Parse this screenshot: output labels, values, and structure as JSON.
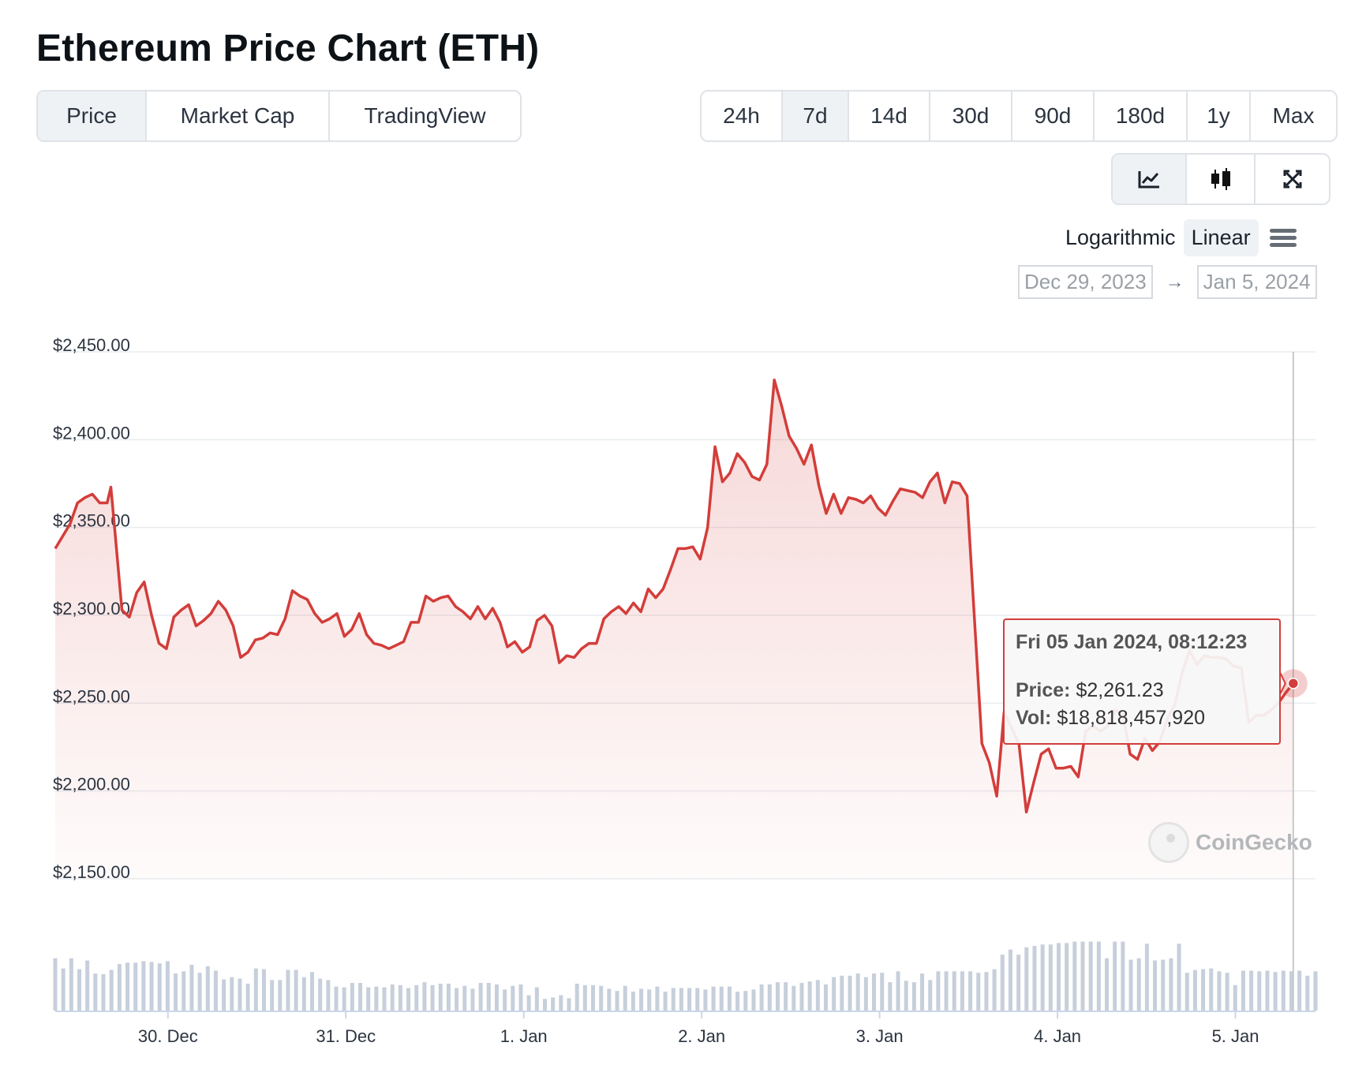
{
  "page": {
    "title": "Ethereum Price Chart (ETH)"
  },
  "view_tabs": [
    {
      "label": "Price",
      "active": true
    },
    {
      "label": "Market Cap",
      "active": false
    },
    {
      "label": "TradingView",
      "active": false
    }
  ],
  "range_tabs": [
    {
      "label": "24h",
      "active": false
    },
    {
      "label": "7d",
      "active": true
    },
    {
      "label": "14d",
      "active": false
    },
    {
      "label": "30d",
      "active": false
    },
    {
      "label": "90d",
      "active": false
    },
    {
      "label": "180d",
      "active": false
    },
    {
      "label": "1y",
      "active": false
    },
    {
      "label": "Max",
      "active": false
    }
  ],
  "chart_type_tabs": [
    {
      "icon": "line-chart-icon",
      "active": true
    },
    {
      "icon": "candlestick-icon",
      "active": false
    },
    {
      "icon": "fullscreen-icon",
      "active": false
    }
  ],
  "scale": {
    "log_label": "Logarithmic",
    "linear_label": "Linear",
    "active": "Linear"
  },
  "date_range": {
    "from": "Dec 29, 2023",
    "arrow": "→",
    "to": "Jan 5, 2024"
  },
  "tooltip": {
    "date": "Fri 05 Jan 2024, 08:12:23",
    "price_label": "Price:",
    "price_value": "$2,261.23",
    "vol_label": "Vol:",
    "vol_value": "$18,818,457,920"
  },
  "watermark": "CoinGecko",
  "colors": {
    "line": "#d33d3a",
    "volume": "#c6cfdb",
    "grid": "#e9ecef"
  },
  "chart_data": {
    "type": "line",
    "ylim": [
      2150,
      2450
    ],
    "yticks": [
      {
        "value": 2450,
        "label": "$2,450.00"
      },
      {
        "value": 2400,
        "label": "$2,400.00"
      },
      {
        "value": 2350,
        "label": "$2,350.00"
      },
      {
        "value": 2300,
        "label": "$2,300.00"
      },
      {
        "value": 2250,
        "label": "$2,250.00"
      },
      {
        "value": 2200,
        "label": "$2,200.00"
      },
      {
        "value": 2150,
        "label": "$2,150.00"
      }
    ],
    "xlim": [
      0,
      170
    ],
    "xticks": [
      {
        "value": 15.2,
        "label": "30. Dec"
      },
      {
        "value": 39.2,
        "label": "31. Dec"
      },
      {
        "value": 63.2,
        "label": "1. Jan"
      },
      {
        "value": 87.2,
        "label": "2. Jan"
      },
      {
        "value": 111.2,
        "label": "3. Jan"
      },
      {
        "value": 135.2,
        "label": "4. Jan"
      },
      {
        "value": 159.2,
        "label": "5. Jan"
      }
    ],
    "price": [
      [
        0,
        2338
      ],
      [
        2,
        2352
      ],
      [
        3,
        2364
      ],
      [
        4,
        2367
      ],
      [
        5,
        2369
      ],
      [
        6,
        2364
      ],
      [
        7,
        2364
      ],
      [
        7.5,
        2373
      ],
      [
        8,
        2350
      ],
      [
        9,
        2303
      ],
      [
        10,
        2299
      ],
      [
        11,
        2313
      ],
      [
        12,
        2319
      ],
      [
        13,
        2300
      ],
      [
        14,
        2284
      ],
      [
        15,
        2281
      ],
      [
        16,
        2299
      ],
      [
        17,
        2303
      ],
      [
        18,
        2306
      ],
      [
        19,
        2294
      ],
      [
        20,
        2297
      ],
      [
        21,
        2301
      ],
      [
        22,
        2308
      ],
      [
        23,
        2303
      ],
      [
        24,
        2294
      ],
      [
        25,
        2276
      ],
      [
        26,
        2279
      ],
      [
        27,
        2286
      ],
      [
        28,
        2287
      ],
      [
        29,
        2290
      ],
      [
        30,
        2289
      ],
      [
        31,
        2298
      ],
      [
        32,
        2314
      ],
      [
        33,
        2311
      ],
      [
        34,
        2309
      ],
      [
        35,
        2301
      ],
      [
        36,
        2296
      ],
      [
        37,
        2298
      ],
      [
        38,
        2301
      ],
      [
        39,
        2288
      ],
      [
        40,
        2292
      ],
      [
        41,
        2301
      ],
      [
        42,
        2289
      ],
      [
        43,
        2284
      ],
      [
        44,
        2283
      ],
      [
        45,
        2281
      ],
      [
        46,
        2283
      ],
      [
        47,
        2285
      ],
      [
        48,
        2296
      ],
      [
        49,
        2296
      ],
      [
        50,
        2311
      ],
      [
        51,
        2308
      ],
      [
        52,
        2310
      ],
      [
        53,
        2311
      ],
      [
        54,
        2305
      ],
      [
        55,
        2302
      ],
      [
        56,
        2298
      ],
      [
        57,
        2305
      ],
      [
        58,
        2298
      ],
      [
        59,
        2304
      ],
      [
        60,
        2296
      ],
      [
        61,
        2282
      ],
      [
        62,
        2285
      ],
      [
        63,
        2279
      ],
      [
        64,
        2282
      ],
      [
        65,
        2297
      ],
      [
        66,
        2300
      ],
      [
        67,
        2294
      ],
      [
        68,
        2273
      ],
      [
        69,
        2277
      ],
      [
        70,
        2276
      ],
      [
        71,
        2281
      ],
      [
        72,
        2284
      ],
      [
        73,
        2284
      ],
      [
        74,
        2298
      ],
      [
        75,
        2302
      ],
      [
        76,
        2305
      ],
      [
        77,
        2301
      ],
      [
        78,
        2307
      ],
      [
        79,
        2302
      ],
      [
        80,
        2315
      ],
      [
        81,
        2310
      ],
      [
        82,
        2315
      ],
      [
        83,
        2326
      ],
      [
        84,
        2338
      ],
      [
        85,
        2338
      ],
      [
        86,
        2339
      ],
      [
        87,
        2332
      ],
      [
        88,
        2350
      ],
      [
        89,
        2396
      ],
      [
        90,
        2376
      ],
      [
        91,
        2381
      ],
      [
        92,
        2392
      ],
      [
        93,
        2387
      ],
      [
        94,
        2379
      ],
      [
        95,
        2377
      ],
      [
        96,
        2386
      ],
      [
        97,
        2434
      ],
      [
        98,
        2419
      ],
      [
        99,
        2402
      ],
      [
        100,
        2395
      ],
      [
        101,
        2386
      ],
      [
        102,
        2397
      ],
      [
        103,
        2374
      ],
      [
        104,
        2358
      ],
      [
        105,
        2369
      ],
      [
        106,
        2358
      ],
      [
        107,
        2367
      ],
      [
        108,
        2366
      ],
      [
        109,
        2364
      ],
      [
        110,
        2368
      ],
      [
        111,
        2361
      ],
      [
        112,
        2357
      ],
      [
        113,
        2365
      ],
      [
        114,
        2372
      ],
      [
        115,
        2371
      ],
      [
        116,
        2370
      ],
      [
        117,
        2367
      ],
      [
        118,
        2376
      ],
      [
        119,
        2381
      ],
      [
        120,
        2364
      ],
      [
        121,
        2376
      ],
      [
        122,
        2375
      ],
      [
        123,
        2368
      ],
      [
        125,
        2227
      ],
      [
        126,
        2216
      ],
      [
        127,
        2197
      ],
      [
        128,
        2245
      ],
      [
        129,
        2236
      ],
      [
        130,
        2227
      ],
      [
        131,
        2188
      ],
      [
        132,
        2205
      ],
      [
        133,
        2221
      ],
      [
        134,
        2224
      ],
      [
        135,
        2213
      ],
      [
        136,
        2213
      ],
      [
        137,
        2214
      ],
      [
        138,
        2208
      ],
      [
        139,
        2234
      ],
      [
        140,
        2237
      ],
      [
        141,
        2234
      ],
      [
        142,
        2237
      ],
      [
        143,
        2246
      ],
      [
        144,
        2244
      ],
      [
        145,
        2221
      ],
      [
        146,
        2218
      ],
      [
        147,
        2230
      ],
      [
        148,
        2223
      ],
      [
        149,
        2228
      ],
      [
        150,
        2241
      ],
      [
        151,
        2249
      ],
      [
        152,
        2267
      ],
      [
        153,
        2280
      ],
      [
        154,
        2272
      ],
      [
        155,
        2277
      ],
      [
        156,
        2276
      ],
      [
        157,
        2276
      ],
      [
        158,
        2275
      ],
      [
        159,
        2271
      ],
      [
        160,
        2270
      ],
      [
        161,
        2239
      ],
      [
        162,
        2243
      ],
      [
        163,
        2243
      ],
      [
        164,
        2246
      ],
      [
        165,
        2250
      ],
      [
        166,
        2256
      ],
      [
        167,
        2261.23
      ]
    ],
    "volume_relative": [
      0.72,
      0.58,
      0.72,
      0.57,
      0.69,
      0.51,
      0.5,
      0.56,
      0.64,
      0.66,
      0.66,
      0.68,
      0.67,
      0.65,
      0.68,
      0.51,
      0.54,
      0.63,
      0.52,
      0.61,
      0.55,
      0.43,
      0.46,
      0.44,
      0.37,
      0.58,
      0.57,
      0.42,
      0.42,
      0.56,
      0.56,
      0.46,
      0.53,
      0.44,
      0.42,
      0.33,
      0.32,
      0.38,
      0.38,
      0.32,
      0.33,
      0.32,
      0.36,
      0.35,
      0.31,
      0.35,
      0.39,
      0.35,
      0.37,
      0.37,
      0.31,
      0.34,
      0.3,
      0.38,
      0.38,
      0.36,
      0.29,
      0.34,
      0.36,
      0.21,
      0.32,
      0.16,
      0.18,
      0.21,
      0.17,
      0.37,
      0.35,
      0.35,
      0.34,
      0.3,
      0.27,
      0.34,
      0.26,
      0.3,
      0.29,
      0.33,
      0.26,
      0.31,
      0.31,
      0.31,
      0.31,
      0.29,
      0.33,
      0.33,
      0.33,
      0.26,
      0.27,
      0.29,
      0.36,
      0.36,
      0.39,
      0.39,
      0.34,
      0.38,
      0.4,
      0.42,
      0.36,
      0.46,
      0.48,
      0.48,
      0.51,
      0.46,
      0.51,
      0.52,
      0.39,
      0.54,
      0.41,
      0.39,
      0.51,
      0.42,
      0.54,
      0.54,
      0.54,
      0.54,
      0.54,
      0.52,
      0.53,
      0.57,
      0.77,
      0.84,
      0.77,
      0.87,
      0.89,
      0.91,
      0.91,
      0.93,
      0.93,
      0.95,
      0.95,
      0.95,
      0.95,
      0.72,
      0.95,
      0.95,
      0.7,
      0.72,
      0.92,
      0.69,
      0.7,
      0.72,
      0.92,
      0.52,
      0.56,
      0.57,
      0.58,
      0.54,
      0.52,
      0.35,
      0.55,
      0.55,
      0.54,
      0.55,
      0.53,
      0.55,
      0.54,
      0.55,
      0.48,
      0.54
    ]
  }
}
